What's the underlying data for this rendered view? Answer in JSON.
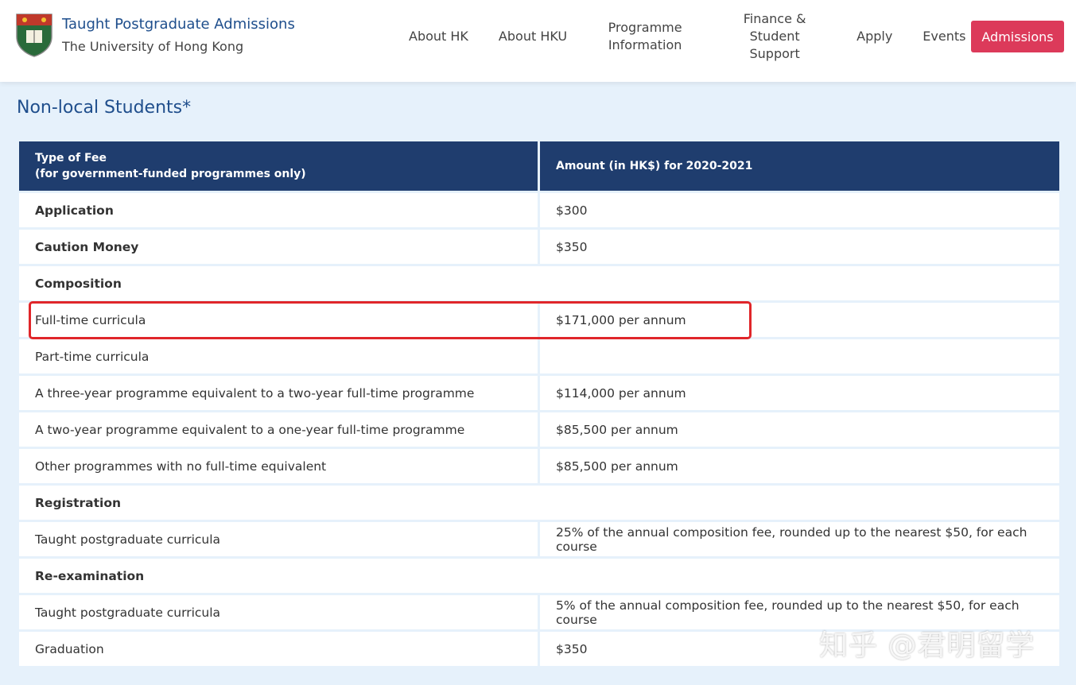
{
  "header": {
    "title": "Taught Postgraduate Admissions",
    "subtitle": "The University of Hong Kong",
    "nav": [
      {
        "label": "About HK"
      },
      {
        "label": "About HKU"
      },
      {
        "label": "Programme Information"
      },
      {
        "label": "Finance & Student Support"
      },
      {
        "label": "Apply"
      },
      {
        "label": "Events"
      }
    ],
    "button": "Admissions"
  },
  "section_title": "Non-local Students*",
  "table": {
    "columns": [
      "Type of Fee",
      "(for government-funded programmes only)",
      "Amount (in HK$) for 2020-2021"
    ],
    "rows": [
      {
        "label": "Application",
        "amount": "$300",
        "bold": true
      },
      {
        "label": "Caution Money",
        "amount": "$350",
        "bold": true
      },
      {
        "label": "Composition",
        "bold": true
      },
      {
        "label": "Full-time curricula",
        "amount": "$171,000 per annum",
        "highlight": true
      },
      {
        "label": "Part-time curricula"
      },
      {
        "label": "A three-year programme equivalent to a two-year full-time programme",
        "amount": "$114,000 per annum"
      },
      {
        "label": "A two-year programme equivalent to a one-year full-time programme",
        "amount": "$85,500 per annum"
      },
      {
        "label": "Other programmes with no full-time equivalent",
        "amount": "$85,500 per annum"
      },
      {
        "label": "Registration",
        "bold": true
      },
      {
        "label": "Taught postgraduate curricula",
        "amount": "25% of the annual composition fee, rounded up to the nearest $50, for each course"
      },
      {
        "label": "Re-examination",
        "bold": true
      },
      {
        "label": "Taught postgraduate curricula",
        "amount": "5% of the annual composition fee, rounded up to the nearest $50, for each course"
      },
      {
        "label": "Graduation",
        "amount": "$350"
      }
    ]
  },
  "watermark": "知乎 @君明留学"
}
